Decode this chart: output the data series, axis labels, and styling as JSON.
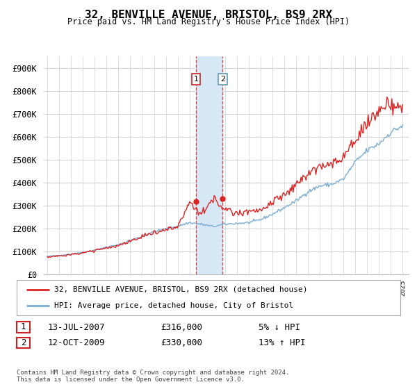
{
  "title": "32, BENVILLE AVENUE, BRISTOL, BS9 2RX",
  "subtitle": "Price paid vs. HM Land Registry's House Price Index (HPI)",
  "ylabel_ticks": [
    "£0",
    "£100K",
    "£200K",
    "£300K",
    "£400K",
    "£500K",
    "£600K",
    "£700K",
    "£800K",
    "£900K"
  ],
  "ytick_values": [
    0,
    100000,
    200000,
    300000,
    400000,
    500000,
    600000,
    700000,
    800000,
    900000
  ],
  "ylim": [
    0,
    950000
  ],
  "background_color": "#ffffff",
  "grid_color": "#d0d0d0",
  "legend_label_red": "32, BENVILLE AVENUE, BRISTOL, BS9 2RX (detached house)",
  "legend_label_blue": "HPI: Average price, detached house, City of Bristol",
  "transaction1_date": "13-JUL-2007",
  "transaction1_price": "£316,000",
  "transaction1_hpi": "5% ↓ HPI",
  "transaction2_date": "12-OCT-2009",
  "transaction2_price": "£330,000",
  "transaction2_hpi": "13% ↑ HPI",
  "footer": "Contains HM Land Registry data © Crown copyright and database right 2024.\nThis data is licensed under the Open Government Licence v3.0.",
  "red_color": "#dd2222",
  "blue_color": "#7aadd4",
  "shade_color": "#d6e8f5",
  "transaction1_x": 2007.54,
  "transaction2_x": 2009.79,
  "transaction1_y": 316000,
  "transaction2_y": 330000,
  "xlim_min": 1994.7,
  "xlim_max": 2025.5
}
